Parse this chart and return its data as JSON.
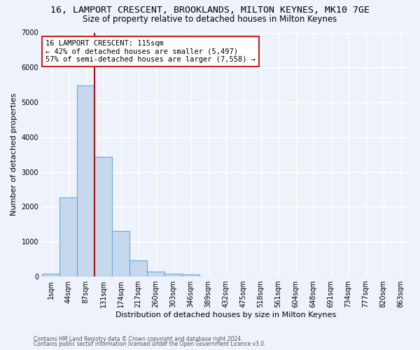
{
  "title": "16, LAMPORT CRESCENT, BROOKLANDS, MILTON KEYNES, MK10 7GE",
  "subtitle": "Size of property relative to detached houses in Milton Keynes",
  "xlabel": "Distribution of detached houses by size in Milton Keynes",
  "ylabel": "Number of detached properties",
  "categories": [
    "1sqm",
    "44sqm",
    "87sqm",
    "131sqm",
    "174sqm",
    "217sqm",
    "260sqm",
    "303sqm",
    "346sqm",
    "389sqm",
    "432sqm",
    "475sqm",
    "518sqm",
    "561sqm",
    "604sqm",
    "648sqm",
    "691sqm",
    "734sqm",
    "777sqm",
    "820sqm",
    "863sqm"
  ],
  "values": [
    75,
    2280,
    5480,
    3440,
    1310,
    460,
    150,
    90,
    55,
    0,
    0,
    0,
    0,
    0,
    0,
    0,
    0,
    0,
    0,
    0,
    0
  ],
  "bar_color": "#c5d8ee",
  "bar_edge_color": "#6aaad4",
  "background_color": "#eef2fb",
  "grid_color": "#ffffff",
  "vline_x": 2.5,
  "vline_color": "#aa1111",
  "annotation_text": "16 LAMPORT CRESCENT: 115sqm\n← 42% of detached houses are smaller (5,497)\n57% of semi-detached houses are larger (7,558) →",
  "annotation_box_color": "#ffffff",
  "annotation_border_color": "#cc2222",
  "footer1": "Contains HM Land Registry data © Crown copyright and database right 2024.",
  "footer2": "Contains public sector information licensed under the Open Government Licence v3.0.",
  "ylim": [
    0,
    7000
  ],
  "yticks": [
    0,
    1000,
    2000,
    3000,
    4000,
    5000,
    6000,
    7000
  ],
  "title_fontsize": 9.5,
  "subtitle_fontsize": 8.5,
  "xlabel_fontsize": 8,
  "ylabel_fontsize": 8,
  "tick_fontsize": 7,
  "ann_fontsize": 7.5,
  "footer_fontsize": 5.5
}
